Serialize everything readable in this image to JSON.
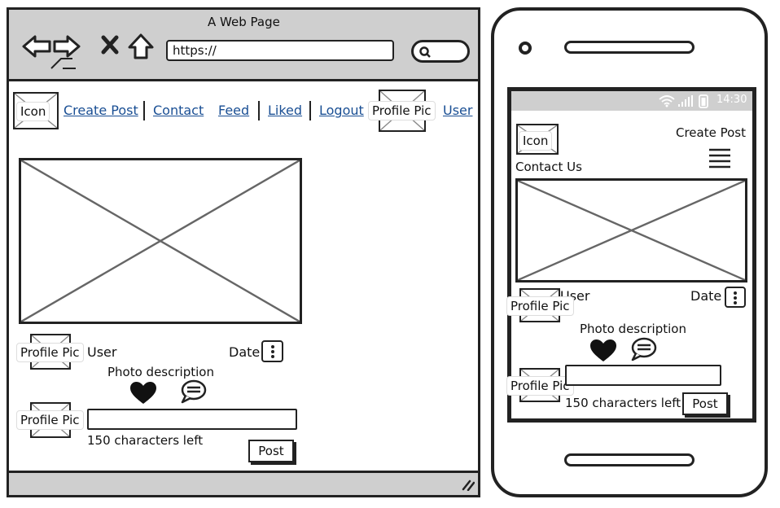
{
  "browser": {
    "title": "A Web Page",
    "url": "https://",
    "nav": {
      "icon_label": "Icon",
      "links": [
        "Create Post",
        "Contact",
        "Feed",
        "Liked",
        "Logout"
      ],
      "profile_pic_label": "Profile Pic",
      "user_link": "User"
    },
    "post": {
      "profile_pic_label": "Profile Pic",
      "user": "User",
      "date": "Date",
      "description": "Photo description"
    },
    "comment": {
      "profile_pic_label": "Profile Pic",
      "chars_left": "150 characters left",
      "post_button": "Post"
    }
  },
  "phone": {
    "status": {
      "time": "14:30"
    },
    "header": {
      "icon_label": "Icon",
      "create_post": "Create Post",
      "contact_us": "Contact Us"
    },
    "post": {
      "profile_pic_label": "Profile Pic",
      "user": "User",
      "date": "Date",
      "description": "Photo description"
    },
    "comment": {
      "profile_pic_label": "Profile Pic",
      "chars_left": "150 characters left",
      "post_button": "Post"
    }
  }
}
